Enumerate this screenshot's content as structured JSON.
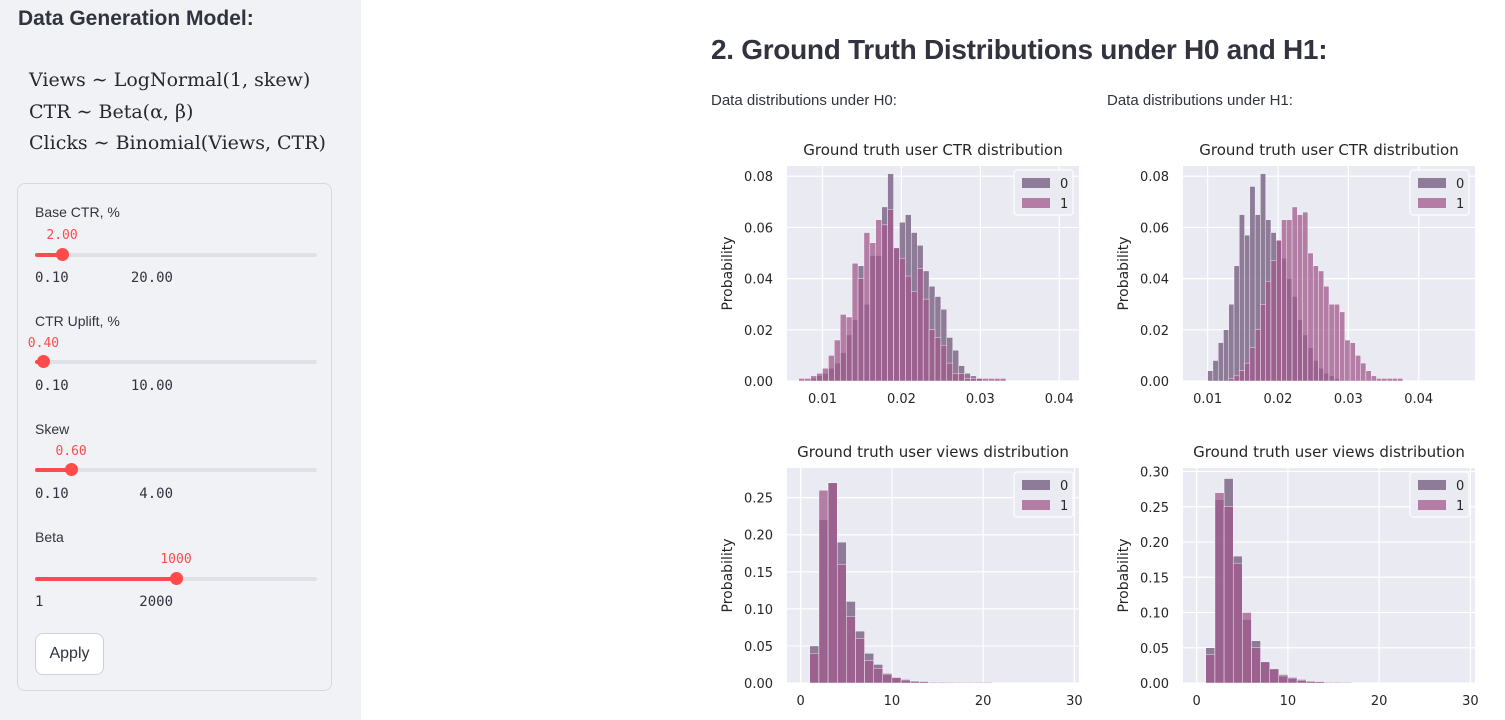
{
  "sidebar": {
    "title": "Data Generation Model:",
    "formulas": [
      "Views ∼ LogNormal(1, skew)",
      "CTR ∼ Beta(α, β)",
      "Clicks ∼ Binomial(Views, CTR)"
    ],
    "sliders": [
      {
        "label": "Base CTR, %",
        "value": "2.00",
        "min": "0.10",
        "max": "20.00",
        "fraction": 0.096
      },
      {
        "label": "CTR Uplift, %",
        "value": "0.40",
        "min": "0.10",
        "max": "10.00",
        "fraction": 0.03
      },
      {
        "label": "Skew",
        "value": "0.60",
        "min": "0.10",
        "max": "4.00",
        "fraction": 0.128
      },
      {
        "label": "Beta",
        "value": "1000",
        "min": "1",
        "max": "2000",
        "fraction": 0.5
      }
    ],
    "apply_label": "Apply"
  },
  "main": {
    "section_title": "2. Ground Truth Distributions under H0 and H1:",
    "h0_label": "Data distributions under H0:",
    "h1_label": "Data distributions under H1:"
  },
  "colors": {
    "series0": "#6e5678",
    "series1": "#a0588c",
    "accent": "#ff4b4b"
  },
  "chart_data": [
    {
      "id": "h0-ctr",
      "type": "bar",
      "title": "Ground truth user CTR distribution",
      "xlabel": "",
      "ylabel": "Probability",
      "xlim": [
        0.0055,
        0.0425
      ],
      "ylim": [
        0,
        0.084
      ],
      "xticks": [
        0.01,
        0.02,
        0.03,
        0.04
      ],
      "xtick_labels": [
        "0.01",
        "0.02",
        "0.03",
        "0.04"
      ],
      "yticks": [
        0,
        0.02,
        0.04,
        0.06,
        0.08
      ],
      "ytick_labels": [
        "0.00",
        "0.02",
        "0.04",
        "0.06",
        "0.08"
      ],
      "legend": [
        "0",
        "1"
      ],
      "legend_position": "top-right",
      "series": [
        {
          "name": "0",
          "bins_start": 0.0085,
          "bin_width": 0.00075,
          "values": [
            0.001,
            0.002,
            0.003,
            0.005,
            0.007,
            0.011,
            0.018,
            0.024,
            0.045,
            0.03,
            0.049,
            0.049,
            0.068,
            0.081,
            0.052,
            0.062,
            0.065,
            0.058,
            0.053,
            0.043,
            0.037,
            0.033,
            0.028,
            0.017,
            0.012,
            0.006,
            0.003,
            0.002,
            0.001
          ]
        },
        {
          "name": "1",
          "bins_start": 0.007,
          "bin_width": 0.00075,
          "values": [
            0.001,
            0.001,
            0.002,
            0.003,
            0.005,
            0.01,
            0.016,
            0.026,
            0.025,
            0.046,
            0.04,
            0.058,
            0.054,
            0.063,
            0.061,
            0.067,
            0.052,
            0.048,
            0.041,
            0.035,
            0.044,
            0.032,
            0.02,
            0.017,
            0.014,
            0.007,
            0.003,
            0.003,
            0.001,
            0.001,
            0.001,
            0.001,
            0.001,
            0.001,
            0.001
          ]
        }
      ]
    },
    {
      "id": "h1-ctr",
      "type": "bar",
      "title": "Ground truth user CTR distribution",
      "xlabel": "",
      "ylabel": "Probability",
      "xlim": [
        0.0065,
        0.048
      ],
      "ylim": [
        0,
        0.084
      ],
      "xticks": [
        0.01,
        0.02,
        0.03,
        0.04
      ],
      "xtick_labels": [
        "0.01",
        "0.02",
        "0.03",
        "0.04"
      ],
      "yticks": [
        0,
        0.02,
        0.04,
        0.06,
        0.08
      ],
      "ytick_labels": [
        "0.00",
        "0.02",
        "0.04",
        "0.06",
        "0.08"
      ],
      "legend": [
        "0",
        "1"
      ],
      "legend_position": "top-right",
      "series": [
        {
          "name": "0",
          "bins_start": 0.01,
          "bin_width": 0.00075,
          "values": [
            0.004,
            0.008,
            0.015,
            0.02,
            0.03,
            0.045,
            0.065,
            0.057,
            0.076,
            0.065,
            0.081,
            0.063,
            0.058,
            0.055,
            0.048,
            0.04,
            0.033,
            0.024,
            0.018,
            0.013,
            0.008,
            0.005,
            0.003,
            0.002,
            0.001
          ]
        },
        {
          "name": "1",
          "bins_start": 0.013,
          "bin_width": 0.00075,
          "values": [
            0.001,
            0.002,
            0.004,
            0.007,
            0.013,
            0.02,
            0.03,
            0.039,
            0.047,
            0.055,
            0.063,
            0.063,
            0.068,
            0.065,
            0.066,
            0.05,
            0.045,
            0.043,
            0.037,
            0.03,
            0.03,
            0.027,
            0.016,
            0.015,
            0.01,
            0.007,
            0.004,
            0.002,
            0.001,
            0.001,
            0.001,
            0.001,
            0.001
          ]
        }
      ]
    },
    {
      "id": "h0-views",
      "type": "bar",
      "title": "Ground truth user views distribution",
      "xlabel": "",
      "ylabel": "Probability",
      "xlim": [
        -1.5,
        30.5
      ],
      "ylim": [
        0,
        0.29
      ],
      "xticks": [
        0,
        10,
        20,
        30
      ],
      "xtick_labels": [
        "0",
        "10",
        "20",
        "30"
      ],
      "yticks": [
        0,
        0.05,
        0.1,
        0.15,
        0.2,
        0.25
      ],
      "ytick_labels": [
        "0.00",
        "0.05",
        "0.10",
        "0.15",
        "0.20",
        "0.25"
      ],
      "legend": [
        "0",
        "1"
      ],
      "legend_position": "top-right",
      "series": [
        {
          "name": "0",
          "bins_start": 1,
          "bin_width": 1,
          "values": [
            0.05,
            0.22,
            0.27,
            0.19,
            0.11,
            0.07,
            0.04,
            0.025,
            0.013,
            0.008,
            0.005,
            0.003,
            0.002,
            0.001,
            0.001
          ]
        },
        {
          "name": "1",
          "bins_start": 1,
          "bin_width": 1,
          "values": [
            0.04,
            0.26,
            0.27,
            0.16,
            0.09,
            0.06,
            0.03,
            0.02,
            0.012,
            0.007,
            0.004,
            0.002,
            0.002,
            0.001,
            0.001,
            0.001,
            0.001,
            0.001,
            0.001,
            0.001
          ]
        }
      ]
    },
    {
      "id": "h1-views",
      "type": "bar",
      "title": "Ground truth user views distribution",
      "xlabel": "",
      "ylabel": "Probability",
      "xlim": [
        -1.5,
        30.5
      ],
      "ylim": [
        0,
        0.305
      ],
      "xticks": [
        0,
        10,
        20,
        30
      ],
      "xtick_labels": [
        "0",
        "10",
        "20",
        "30"
      ],
      "yticks": [
        0,
        0.05,
        0.1,
        0.15,
        0.2,
        0.25,
        0.3
      ],
      "ytick_labels": [
        "0.00",
        "0.05",
        "0.10",
        "0.15",
        "0.20",
        "0.25",
        "0.30"
      ],
      "legend": [
        "0",
        "1"
      ],
      "legend_position": "top-right",
      "series": [
        {
          "name": "0",
          "bins_start": 1,
          "bin_width": 1,
          "values": [
            0.05,
            0.26,
            0.29,
            0.18,
            0.09,
            0.06,
            0.03,
            0.02,
            0.012,
            0.008,
            0.005,
            0.003,
            0.002,
            0.001,
            0.001
          ]
        },
        {
          "name": "1",
          "bins_start": 1,
          "bin_width": 1,
          "values": [
            0.04,
            0.27,
            0.25,
            0.17,
            0.1,
            0.05,
            0.03,
            0.02,
            0.01,
            0.007,
            0.004,
            0.002,
            0.002,
            0.001,
            0.001,
            0.001
          ]
        }
      ]
    }
  ]
}
